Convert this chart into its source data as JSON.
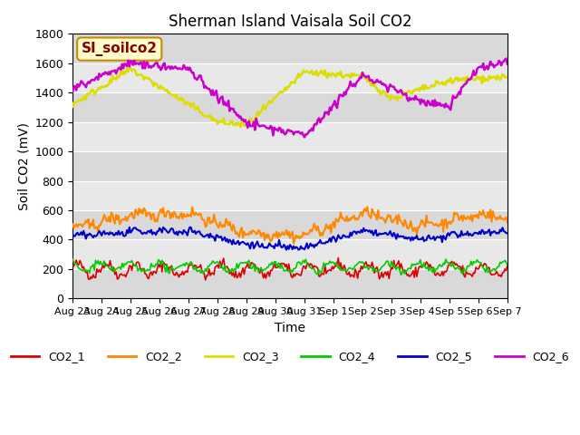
{
  "title": "Sherman Island Vaisala Soil CO2",
  "xlabel": "Time",
  "ylabel": "Soil CO2 (mV)",
  "ylim": [
    0,
    1800
  ],
  "xlim": [
    0,
    360
  ],
  "background_color": "#ffffff",
  "plot_bg_color": "#e8e8e8",
  "band_colors": [
    "#d8d8d8",
    "#d8d8d8"
  ],
  "watermark_text": "SI_soilco2",
  "watermark_bg": "#ffffcc",
  "watermark_border": "#cc8800",
  "watermark_text_color": "#880000",
  "xtick_labels": [
    "Aug 23",
    "Aug 24",
    "Aug 25",
    "Aug 26",
    "Aug 27",
    "Aug 28",
    "Aug 29",
    "Aug 30",
    "Aug 31",
    "Sep 1",
    "Sep 2",
    "Sep 3",
    "Sep 4",
    "Sep 5",
    "Sep 6",
    "Sep 7"
  ],
  "legend_labels": [
    "CO2_1",
    "CO2_2",
    "CO2_3",
    "CO2_4",
    "CO2_5",
    "CO2_6"
  ],
  "line_colors": [
    "#dd0000",
    "#ff8800",
    "#dddd00",
    "#00cc00",
    "#0000cc",
    "#cc00cc"
  ],
  "line_widths": [
    1.2,
    1.5,
    1.8,
    1.2,
    1.5,
    1.8
  ],
  "num_points": 361,
  "seed": 42
}
